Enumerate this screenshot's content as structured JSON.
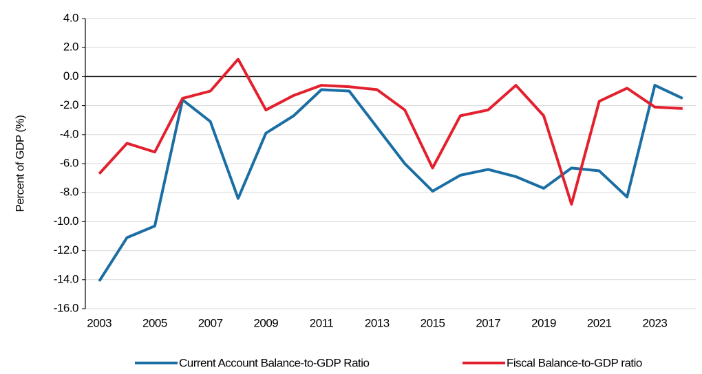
{
  "chart_data": {
    "type": "line",
    "y_label": "Percent of GDP (%)",
    "x": [
      2003,
      2004,
      2005,
      2006,
      2007,
      2008,
      2009,
      2010,
      2011,
      2012,
      2013,
      2014,
      2015,
      2016,
      2017,
      2018,
      2019,
      2020,
      2021,
      2022,
      2023,
      2024
    ],
    "series": [
      {
        "name": "Current Account Balance-to-GDP Ratio",
        "color": "#1a6ea3",
        "values": [
          -14.1,
          -11.1,
          -10.3,
          -1.6,
          -3.1,
          -8.4,
          -3.9,
          -2.7,
          -0.9,
          -1.0,
          -3.5,
          -6.0,
          -7.9,
          -6.8,
          -6.4,
          -6.9,
          -7.7,
          -6.3,
          -6.5,
          -8.3,
          -0.6,
          -1.5
        ]
      },
      {
        "name": "Fiscal Balance-to-GDP ratio",
        "color": "#e3202d",
        "values": [
          -6.7,
          -4.6,
          -5.2,
          -1.5,
          -1.0,
          1.2,
          -2.3,
          -1.3,
          -0.6,
          -0.7,
          -0.9,
          -2.3,
          -6.3,
          -2.7,
          -2.3,
          -0.6,
          -2.7,
          -8.8,
          -1.7,
          -0.8,
          -2.1,
          -2.2
        ]
      }
    ],
    "xlim": [
      2002.5,
      2024.5
    ],
    "xticks": [
      2003,
      2005,
      2007,
      2009,
      2011,
      2013,
      2015,
      2017,
      2019,
      2021,
      2023
    ],
    "ylim": [
      -16,
      4
    ],
    "yticks": [
      {
        "value": -16,
        "label": "-16.0"
      },
      {
        "value": -14,
        "label": "-14.0"
      },
      {
        "value": -12,
        "label": "-12.0"
      },
      {
        "value": -10,
        "label": "-10.0"
      },
      {
        "value": -8,
        "label": "-8.0"
      },
      {
        "value": -6,
        "label": "-6.0"
      },
      {
        "value": -4,
        "label": "-4.0"
      },
      {
        "value": -2,
        "label": "-2.0"
      },
      {
        "value": 0,
        "label": "0.0"
      },
      {
        "value": 2,
        "label": "2.0"
      },
      {
        "value": 4,
        "label": "4.0"
      }
    ],
    "grid": true,
    "legend": "bottom"
  }
}
